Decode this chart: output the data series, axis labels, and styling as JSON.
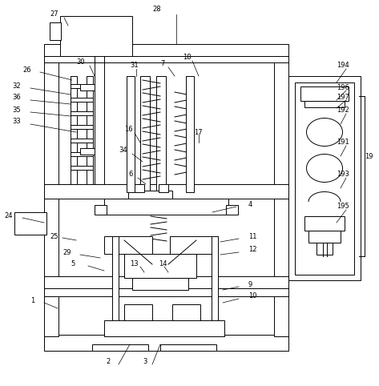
{
  "fig_width": 4.73,
  "fig_height": 4.82,
  "dpi": 100,
  "bg_color": "#ffffff",
  "lc": "#000000",
  "lw": 0.7,
  "lw_thin": 0.5
}
